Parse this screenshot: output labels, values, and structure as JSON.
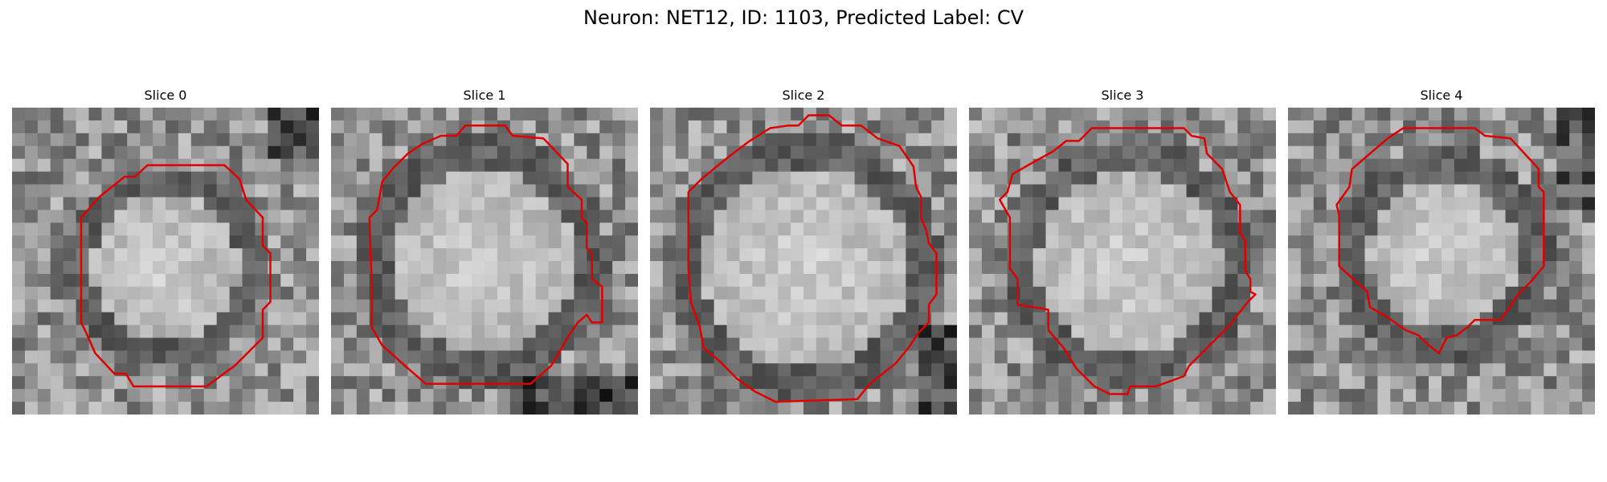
{
  "figure": {
    "title": "Neuron: NET12, ID: 1103, Predicted Label: CV"
  },
  "panels": [
    {
      "title": "Slice 0"
    },
    {
      "title": "Slice 1"
    },
    {
      "title": "Slice 2"
    },
    {
      "title": "Slice 3"
    },
    {
      "title": "Slice 4"
    }
  ],
  "colors": {
    "contour": "#e00000",
    "background": "#ffffff"
  }
}
